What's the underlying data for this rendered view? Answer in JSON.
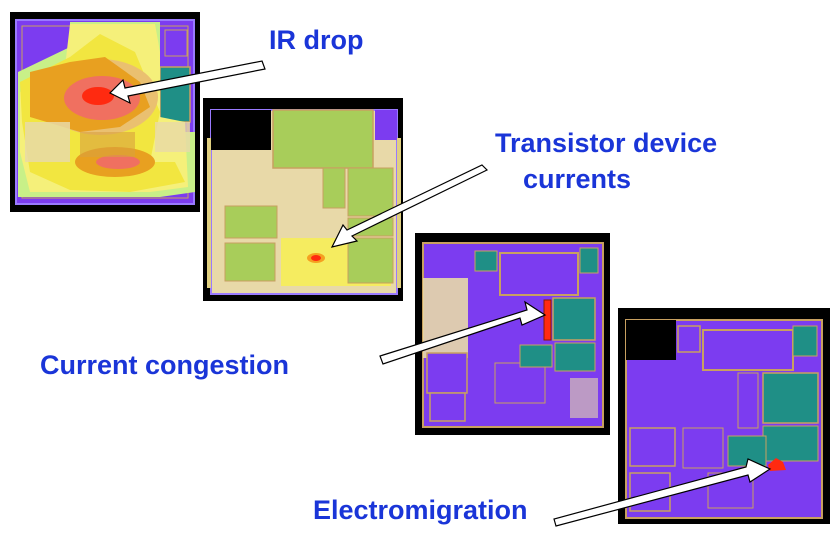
{
  "labels": {
    "ir_drop": "IR drop",
    "transistor_line1": "Transistor device",
    "transistor_line2": "currents",
    "current_congestion": "Current congestion",
    "electromigration": "Electromigration"
  },
  "colors": {
    "label_text": "#1a35d8",
    "chip_background": "#000000",
    "die_outline": "#7a4ae0",
    "cell_fill_purple": "#7c3cf0",
    "block_teal": "#1f8f86",
    "block_green": "#a8cd5a",
    "standard_cells_beige": "#e8d9a8",
    "hotspot_red": "#ff2a10",
    "ir_yellow": "#f2e640",
    "ir_orange": "#e8a020",
    "ir_salmon": "#f07060"
  }
}
